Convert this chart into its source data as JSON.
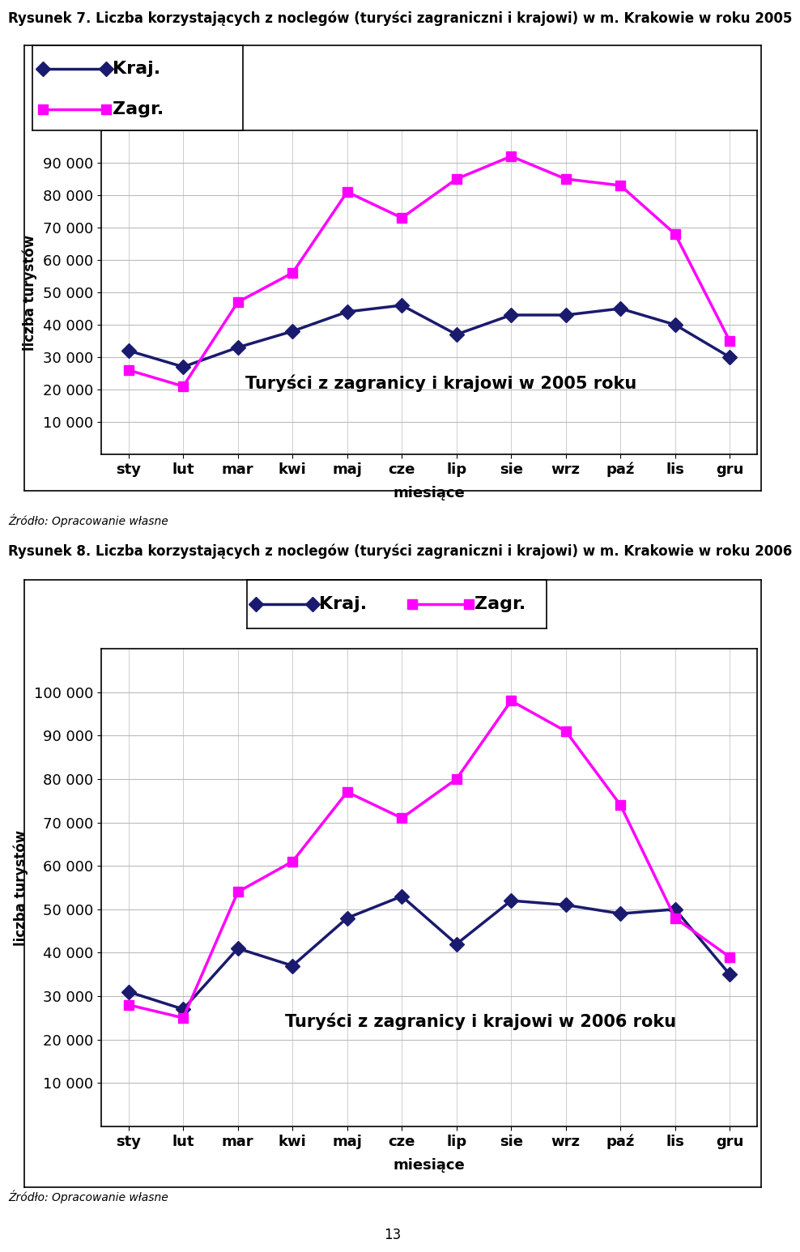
{
  "title1": "Rysunek 7. Liczba korzystających z noclegów (turyści zagraniczni i krajowi) w m. Krakowie w roku 2005",
  "title2": "Rysunek 8. Liczba korzystających z noclegów (turyści zagraniczni i krajowi) w m. Krakowie w roku 2006",
  "source_label": "Źródło: Opracowanie własne",
  "months": [
    "sty",
    "lut",
    "mar",
    "kwi",
    "maj",
    "cze",
    "lip",
    "sie",
    "wrz",
    "paź",
    "lis",
    "gru"
  ],
  "xlabel": "miesiące",
  "ylabel": "liczba turystów",
  "legend_kraj": "Kraj.",
  "legend_zagr": "Zagr.",
  "chart1_annotation": "Turyści z zagranicy i krajowi w 2005 roku",
  "chart2_annotation": "Turyści z zagranicy i krajowi w 2006 roku",
  "chart1_kraj": [
    32000,
    27000,
    33000,
    38000,
    44000,
    46000,
    37000,
    43000,
    43000,
    45000,
    40000,
    30000
  ],
  "chart1_zagr": [
    26000,
    21000,
    47000,
    56000,
    81000,
    73000,
    85000,
    92000,
    85000,
    83000,
    68000,
    35000
  ],
  "chart2_kraj": [
    31000,
    27000,
    41000,
    37000,
    48000,
    53000,
    42000,
    52000,
    51000,
    49000,
    50000,
    35000
  ],
  "chart2_zagr": [
    28000,
    25000,
    54000,
    61000,
    77000,
    71000,
    80000,
    98000,
    91000,
    74000,
    48000,
    39000
  ],
  "chart1_ylim": [
    0,
    100000
  ],
  "chart2_ylim": [
    0,
    110000
  ],
  "chart1_yticks": [
    10000,
    20000,
    30000,
    40000,
    50000,
    60000,
    70000,
    80000,
    90000
  ],
  "chart2_yticks": [
    10000,
    20000,
    30000,
    40000,
    50000,
    60000,
    70000,
    80000,
    90000,
    100000
  ],
  "color_kraj": "#1a1a6e",
  "color_zagr": "#FF00FF",
  "page_number": "13",
  "bg_color": "#FFFFFF",
  "plot_bg": "#FFFFFF",
  "title1_fontsize": 12,
  "title2_fontsize": 12,
  "annotation_fontsize": 15,
  "legend_fontsize": 16,
  "tick_fontsize": 13,
  "xlabel_fontsize": 13,
  "ylabel_fontsize": 12,
  "source_fontsize": 10
}
